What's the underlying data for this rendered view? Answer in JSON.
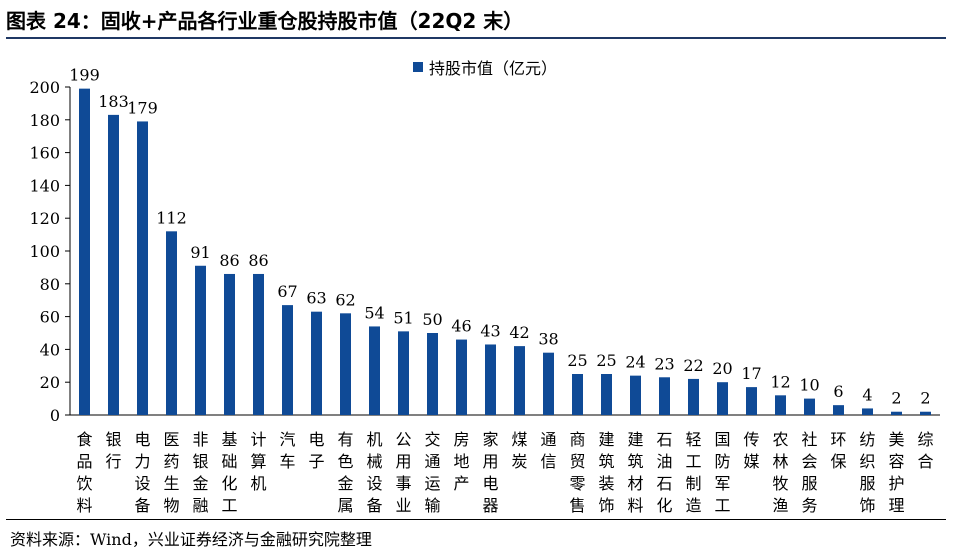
{
  "header": {
    "title": "图表 24：固收+产品各行业重仓股持股市值（22Q2 末）"
  },
  "footer": {
    "source": "资料来源：Wind，兴业证券经济与金融研究院整理"
  },
  "colors": {
    "bar": "#0f4a96",
    "rule": "#1f3864"
  },
  "chart_data": {
    "type": "bar",
    "categories": [
      "食品饮料",
      "银行",
      "电力设备",
      "医药生物",
      "非银金融",
      "基础化工",
      "计算机",
      "汽车",
      "电子",
      "有色金属",
      "机械设备",
      "公用事业",
      "交通运输",
      "房地产",
      "家用电器",
      "煤炭",
      "通信",
      "商贸零售",
      "建筑装饰",
      "建筑材料",
      "石油石化",
      "轻工制造",
      "国防军工",
      "传媒",
      "农林牧渔",
      "社会服务",
      "环保",
      "纺织服饰",
      "美容护理",
      "综合"
    ],
    "series": [
      {
        "name": "持股市值（亿元）",
        "values": [
          199,
          183,
          179,
          112,
          91,
          86,
          86,
          67,
          63,
          62,
          54,
          51,
          50,
          46,
          43,
          42,
          38,
          25,
          25,
          24,
          23,
          22,
          20,
          17,
          12,
          10,
          6,
          4,
          2,
          2
        ]
      }
    ],
    "yticks": [
      "0",
      "20",
      "40",
      "60",
      "80",
      "100",
      "120",
      "140",
      "160",
      "180",
      "200"
    ],
    "ylim": [
      0,
      200
    ],
    "legend_position": "top",
    "grid": false
  }
}
